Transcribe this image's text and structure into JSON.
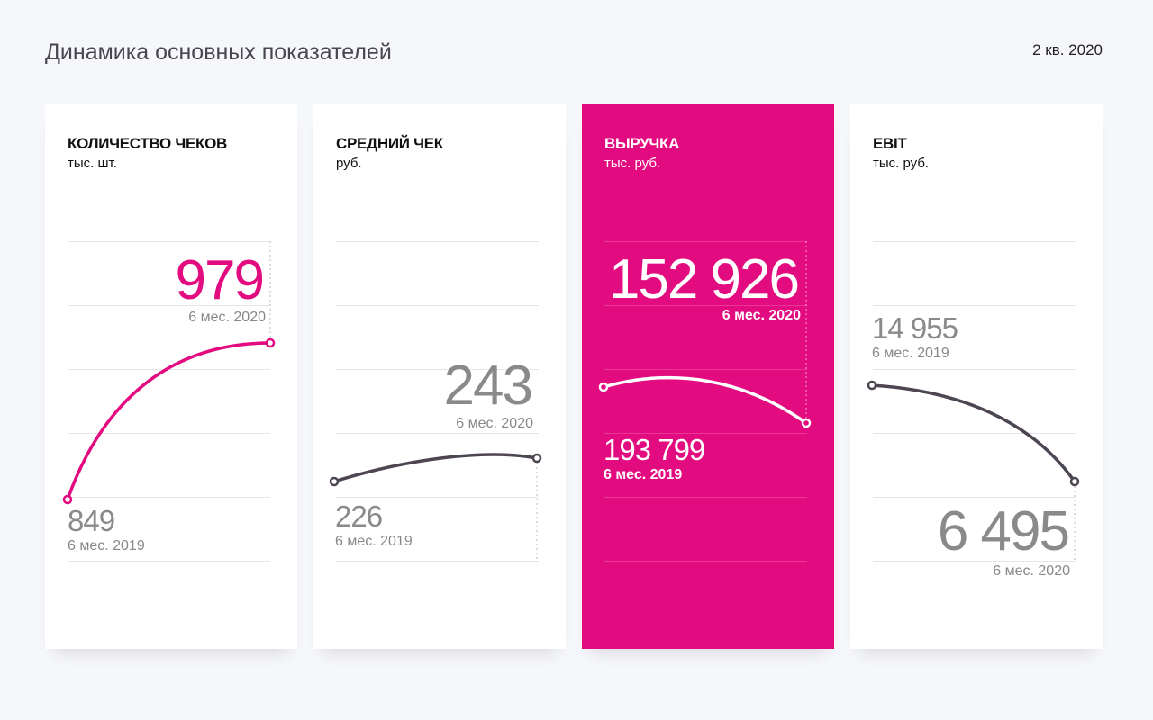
{
  "header": {
    "title": "Динамика основных показателей",
    "period": "2 кв. 2020"
  },
  "colors": {
    "accent": "#e30b80",
    "line_dark": "#4d4552",
    "muted_text": "#888888",
    "background": "#f6f7fb"
  },
  "cards": [
    {
      "title": "КОЛИЧЕСТВО ЧЕКОВ",
      "unit": "тыс. шт.",
      "prev_value": "849",
      "prev_label": "6 мес. 2019",
      "curr_value": "979",
      "curr_label": "6 мес. 2020",
      "highlighted": false
    },
    {
      "title": "СРЕДНИЙ ЧЕК",
      "unit": "руб.",
      "prev_value": "226",
      "prev_label": "6 мес. 2019",
      "curr_value": "243",
      "curr_label": "6 мес. 2020",
      "highlighted": false
    },
    {
      "title": "ВЫРУЧКА",
      "unit": "тыс. руб.",
      "prev_value": "193 799",
      "prev_label": "6 мес. 2019",
      "curr_value": "152 926",
      "curr_label": "6 мес. 2020",
      "highlighted": true
    },
    {
      "title": "EBIT",
      "unit": "тыс. руб.",
      "prev_value": "14 955",
      "prev_label": "6 мес. 2019",
      "curr_value": "6 495",
      "curr_label": "6 мес. 2020",
      "highlighted": false
    }
  ],
  "chart_data": [
    {
      "type": "line",
      "title": "КОЛИЧЕСТВО ЧЕКОВ",
      "ylabel": "тыс. шт.",
      "x": [
        "6 мес. 2019",
        "6 мес. 2020"
      ],
      "values": [
        849,
        979
      ],
      "grid": true
    },
    {
      "type": "line",
      "title": "СРЕДНИЙ ЧЕК",
      "ylabel": "руб.",
      "x": [
        "6 мес. 2019",
        "6 мес. 2020"
      ],
      "values": [
        226,
        243
      ],
      "grid": true
    },
    {
      "type": "line",
      "title": "ВЫРУЧКА",
      "ylabel": "тыс. руб.",
      "x": [
        "6 мес. 2019",
        "6 мес. 2020"
      ],
      "values": [
        193799,
        152926
      ],
      "grid": true
    },
    {
      "type": "line",
      "title": "EBIT",
      "ylabel": "тыс. руб.",
      "x": [
        "6 мес. 2019",
        "6 мес. 2020"
      ],
      "values": [
        14955,
        6495
      ],
      "grid": true
    }
  ]
}
